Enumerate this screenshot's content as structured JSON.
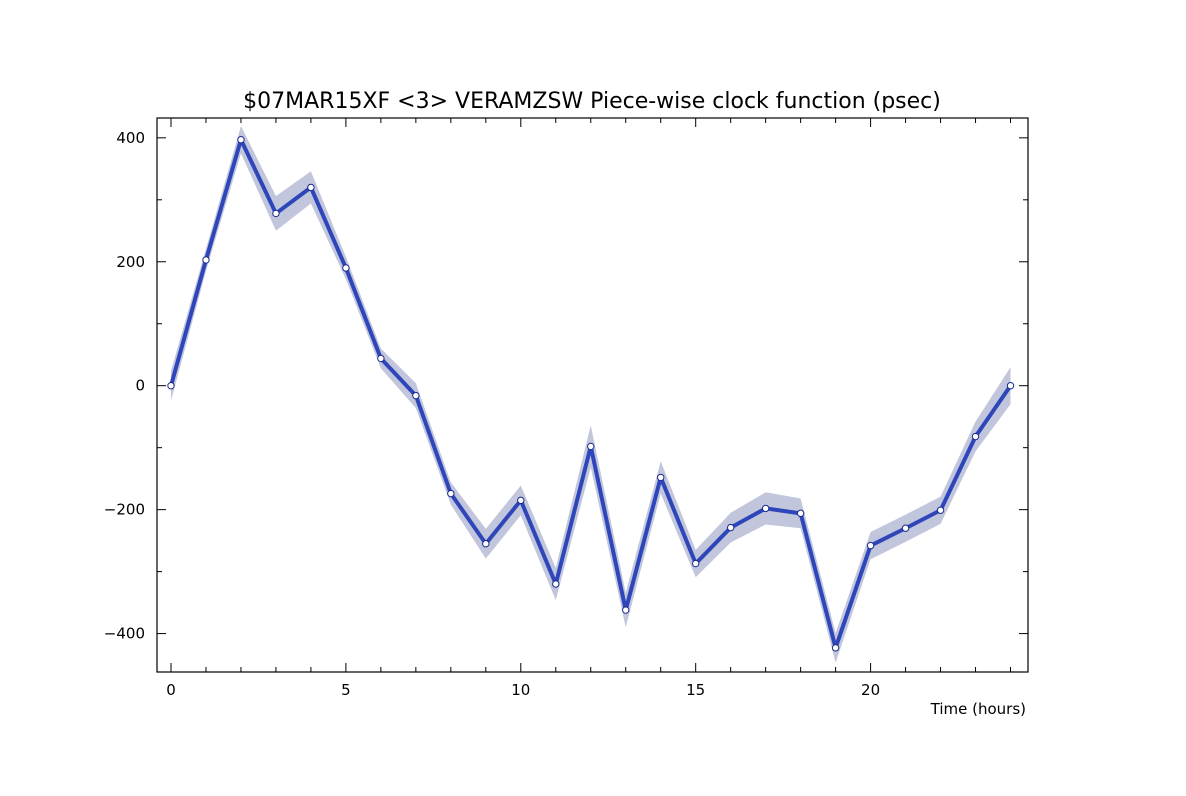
{
  "chart_data": {
    "type": "line",
    "title": "$07MAR15XF <3>  VERAMZSW  Piece-wise clock function (psec)",
    "xlabel": "Time (hours)",
    "ylabel": "",
    "xlim": [
      -0.4,
      24.5
    ],
    "ylim": [
      -462,
      432
    ],
    "x_ticks": [
      0,
      5,
      10,
      15,
      20
    ],
    "y_ticks": [
      400,
      200,
      0,
      -200,
      -400
    ],
    "grid": false,
    "series": [
      {
        "x": [
          0,
          1,
          2,
          3,
          4,
          5,
          6,
          7,
          8,
          9,
          10,
          11,
          12,
          13,
          14,
          15,
          16,
          17,
          18,
          19,
          20,
          21,
          22,
          23,
          24
        ],
        "values": [
          0,
          203,
          397,
          278,
          320,
          190,
          44,
          -16,
          -174,
          -255,
          -185,
          -320,
          -98,
          -362,
          -148,
          -287,
          -229,
          -198,
          -206,
          -423,
          -258,
          -230,
          -201,
          -82,
          0
        ],
        "uncertainty": [
          24,
          18,
          22,
          28,
          26,
          18,
          16,
          20,
          18,
          24,
          24,
          26,
          34,
          28,
          26,
          22,
          24,
          26,
          24,
          24,
          22,
          22,
          22,
          24,
          30
        ]
      }
    ],
    "colors": {
      "line": "#2e46b9",
      "band": "#c2c6dc",
      "marker_fill": "#ffffff",
      "marker_stroke": "#1a2a8a"
    }
  }
}
